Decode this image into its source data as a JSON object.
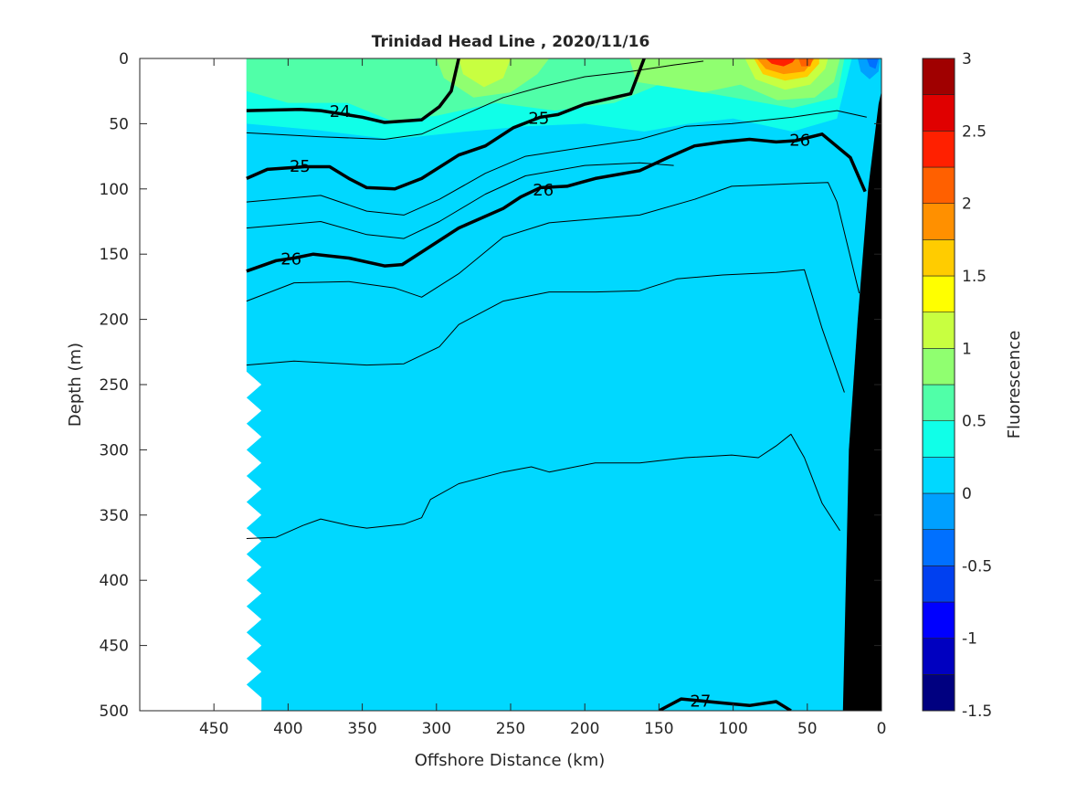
{
  "chart_data": {
    "type": "heatmap",
    "subtype": "filled contour section with density contour overlay",
    "title": "Trinidad Head Line , 2020/11/16",
    "xlabel": "Offshore Distance (km)",
    "ylabel": "Depth (m)",
    "xlim": [
      500,
      0
    ],
    "ylim": [
      0,
      500
    ],
    "x_reversed": true,
    "y_reversed": true,
    "xticks": [
      "450",
      "400",
      "350",
      "300",
      "250",
      "200",
      "150",
      "100",
      "50",
      "0"
    ],
    "yticks": [
      "0",
      "50",
      "100",
      "150",
      "200",
      "250",
      "300",
      "350",
      "400",
      "450",
      "500"
    ],
    "colorbar": {
      "label": "Fluorescence",
      "range": [
        -1.5,
        3
      ],
      "ticks": [
        "3",
        "2.5",
        "2",
        "1.5",
        "1",
        "0.5",
        "0",
        "-0.5",
        "-1",
        "-1.5"
      ],
      "levels": [
        -1.5,
        -1.25,
        -1,
        -0.75,
        -0.5,
        -0.25,
        0,
        0.25,
        0.5,
        0.75,
        1,
        1.25,
        1.5,
        1.75,
        2,
        2.25,
        2.5,
        2.75,
        3
      ],
      "colors": [
        "#000080",
        "#0000c0",
        "#0000ff",
        "#0040f0",
        "#0070ff",
        "#00a0ff",
        "#00d8ff",
        "#10ffe8",
        "#50ffa8",
        "#90ff70",
        "#c8ff40",
        "#ffff00",
        "#ffcc00",
        "#ff9000",
        "#ff6000",
        "#ff2000",
        "#e00000",
        "#a00000"
      ]
    },
    "background_level_color": "#00d8ff",
    "fluorescence_regions": [
      {
        "level": 0.25,
        "color": "#10ffe8",
        "points": [
          [
            428,
            0
          ],
          [
            428,
            50
          ],
          [
            380,
            55
          ],
          [
            330,
            62
          ],
          [
            280,
            56
          ],
          [
            240,
            52
          ],
          [
            200,
            50
          ],
          [
            160,
            56
          ],
          [
            130,
            50
          ],
          [
            100,
            46
          ],
          [
            60,
            56
          ],
          [
            30,
            46
          ],
          [
            20,
            0
          ]
        ]
      },
      {
        "level": 0.5,
        "color": "#50ffa8",
        "points": [
          [
            428,
            0
          ],
          [
            428,
            25
          ],
          [
            400,
            34
          ],
          [
            360,
            34
          ],
          [
            330,
            48
          ],
          [
            300,
            44
          ],
          [
            260,
            34
          ],
          [
            220,
            40
          ],
          [
            180,
            34
          ],
          [
            150,
            20
          ],
          [
            100,
            30
          ],
          [
            60,
            38
          ],
          [
            30,
            30
          ],
          [
            25,
            0
          ]
        ]
      },
      {
        "level": 0.75,
        "color": "#90ff70",
        "points": [
          [
            300,
            0
          ],
          [
            295,
            15
          ],
          [
            275,
            30
          ],
          [
            250,
            26
          ],
          [
            232,
            12
          ],
          [
            224,
            0
          ]
        ]
      },
      {
        "level": 0.75,
        "color": "#90ff70",
        "points": [
          [
            170,
            0
          ],
          [
            165,
            18
          ],
          [
            120,
            26
          ],
          [
            95,
            20
          ],
          [
            85,
            0
          ]
        ]
      },
      {
        "level": 0.75,
        "color": "#90ff70",
        "points": [
          [
            100,
            0
          ],
          [
            95,
            20
          ],
          [
            70,
            32
          ],
          [
            45,
            30
          ],
          [
            32,
            18
          ],
          [
            28,
            0
          ]
        ]
      },
      {
        "level": 1.0,
        "color": "#c8ff40",
        "points": [
          [
            285,
            0
          ],
          [
            282,
            12
          ],
          [
            268,
            22
          ],
          [
            255,
            15
          ],
          [
            250,
            0
          ]
        ]
      },
      {
        "level": 1.0,
        "color": "#c8ff40",
        "points": [
          [
            92,
            0
          ],
          [
            85,
            16
          ],
          [
            65,
            24
          ],
          [
            48,
            20
          ],
          [
            38,
            8
          ],
          [
            36,
            0
          ]
        ]
      },
      {
        "level": 1.5,
        "color": "#ffcc00",
        "points": [
          [
            86,
            0
          ],
          [
            80,
            12
          ],
          [
            65,
            17
          ],
          [
            50,
            14
          ],
          [
            42,
            4
          ],
          [
            42,
            0
          ]
        ]
      },
      {
        "level": 1.75,
        "color": "#ff9000",
        "points": [
          [
            84,
            0
          ],
          [
            78,
            8
          ],
          [
            66,
            12
          ],
          [
            52,
            10
          ],
          [
            45,
            0
          ]
        ]
      },
      {
        "level": 2.25,
        "color": "#ff2000",
        "points": [
          [
            78,
            0
          ],
          [
            74,
            4
          ],
          [
            66,
            6
          ],
          [
            60,
            3
          ],
          [
            58,
            0
          ]
        ]
      },
      {
        "level": 2.0,
        "color": "#ff6000",
        "points": [
          [
            56,
            0
          ],
          [
            54,
            6
          ],
          [
            48,
            6
          ],
          [
            46,
            0
          ]
        ]
      },
      {
        "level": 0,
        "color": "#00a0ff",
        "points": [
          [
            16,
            0
          ],
          [
            14,
            10
          ],
          [
            8,
            16
          ],
          [
            2,
            10
          ],
          [
            1,
            0
          ]
        ]
      },
      {
        "level": -0.25,
        "color": "#0070ff",
        "points": [
          [
            10,
            0
          ],
          [
            8,
            6
          ],
          [
            4,
            8
          ],
          [
            2,
            0
          ]
        ]
      }
    ],
    "density_contours": [
      {
        "level": 24,
        "bold": true,
        "label": "24",
        "label_at": [
          365,
          40
        ],
        "points": [
          [
            428,
            40
          ],
          [
            392,
            39
          ],
          [
            378,
            40
          ],
          [
            350,
            45
          ],
          [
            335,
            49
          ],
          [
            310,
            47
          ],
          [
            298,
            37
          ],
          [
            290,
            25
          ],
          [
            285,
            0
          ]
        ]
      },
      {
        "level": 25,
        "bold": true,
        "label": "25",
        "label_at": [
          231,
          45
        ],
        "points": [
          [
            428,
            92
          ],
          [
            414,
            85
          ],
          [
            389,
            83
          ],
          [
            372,
            83
          ],
          [
            359,
            92
          ],
          [
            347,
            99
          ],
          [
            328,
            100
          ],
          [
            310,
            92
          ],
          [
            285,
            74
          ],
          [
            267,
            67
          ],
          [
            248,
            53
          ],
          [
            230,
            45
          ],
          [
            218,
            43
          ],
          [
            200,
            35
          ],
          [
            169,
            27
          ],
          [
            160,
            0
          ]
        ]
      },
      {
        "level": 25,
        "bold": true,
        "label": "25",
        "label_at": [
          392,
          82
        ],
        "points": []
      },
      {
        "level": 26,
        "bold": true,
        "label": "26",
        "label_at": [
          398,
          153
        ],
        "points": [
          [
            428,
            163
          ],
          [
            408,
            155
          ],
          [
            396,
            153
          ],
          [
            383,
            150
          ],
          [
            359,
            153
          ],
          [
            335,
            159
          ],
          [
            323,
            158
          ],
          [
            304,
            144
          ],
          [
            285,
            130
          ],
          [
            255,
            115
          ],
          [
            243,
            106
          ],
          [
            230,
            99
          ],
          [
            212,
            98
          ],
          [
            193,
            92
          ],
          [
            163,
            86
          ],
          [
            144,
            76
          ],
          [
            126,
            67
          ],
          [
            107,
            64
          ],
          [
            89,
            62
          ],
          [
            71,
            64
          ],
          [
            58,
            63
          ],
          [
            40,
            58
          ],
          [
            21,
            76
          ],
          [
            11,
            102
          ]
        ]
      },
      {
        "level": 26,
        "bold": true,
        "label": "26",
        "label_at": [
          228,
          100
        ],
        "points": []
      },
      {
        "level": 26,
        "bold": true,
        "label": "26",
        "label_at": [
          55,
          62
        ],
        "points": []
      },
      {
        "level": 27,
        "bold": true,
        "label": "27",
        "label_at": [
          122,
          492
        ],
        "points": [
          [
            150,
            500
          ],
          [
            135,
            491
          ],
          [
            108,
            494
          ],
          [
            89,
            496
          ],
          [
            71,
            493
          ],
          [
            61,
            500
          ]
        ]
      },
      {
        "level": 24.5,
        "bold": false,
        "points": [
          [
            428,
            57
          ],
          [
            378,
            60
          ],
          [
            335,
            62
          ],
          [
            310,
            58
          ],
          [
            285,
            45
          ],
          [
            255,
            30
          ],
          [
            230,
            22
          ],
          [
            200,
            14
          ],
          [
            169,
            10
          ],
          [
            140,
            5
          ],
          [
            120,
            2
          ]
        ]
      },
      {
        "level": 25.3,
        "bold": false,
        "points": [
          [
            428,
            110
          ],
          [
            378,
            105
          ],
          [
            347,
            117
          ],
          [
            322,
            120
          ],
          [
            298,
            108
          ],
          [
            267,
            88
          ],
          [
            240,
            75
          ],
          [
            200,
            68
          ],
          [
            163,
            62
          ],
          [
            132,
            52
          ],
          [
            101,
            50
          ],
          [
            60,
            45
          ],
          [
            30,
            40
          ],
          [
            10,
            45
          ]
        ]
      },
      {
        "level": 25.6,
        "bold": false,
        "points": [
          [
            428,
            130
          ],
          [
            378,
            125
          ],
          [
            347,
            135
          ],
          [
            322,
            138
          ],
          [
            298,
            125
          ],
          [
            267,
            104
          ],
          [
            240,
            90
          ],
          [
            200,
            82
          ],
          [
            163,
            80
          ],
          [
            140,
            82
          ]
        ]
      },
      {
        "level": 26.2,
        "bold": false,
        "points": [
          [
            428,
            186
          ],
          [
            396,
            172
          ],
          [
            359,
            171
          ],
          [
            328,
            176
          ],
          [
            310,
            183
          ],
          [
            285,
            165
          ],
          [
            255,
            137
          ],
          [
            224,
            126
          ],
          [
            163,
            120
          ],
          [
            126,
            108
          ],
          [
            101,
            98
          ],
          [
            60,
            96
          ],
          [
            36,
            95
          ],
          [
            30,
            110
          ],
          [
            15,
            180
          ]
        ]
      },
      {
        "level": 26.4,
        "bold": false,
        "points": [
          [
            428,
            235
          ],
          [
            396,
            232
          ],
          [
            347,
            235
          ],
          [
            322,
            234
          ],
          [
            298,
            221
          ],
          [
            285,
            204
          ],
          [
            255,
            186
          ],
          [
            224,
            179
          ],
          [
            193,
            179
          ],
          [
            163,
            178
          ],
          [
            138,
            169
          ],
          [
            107,
            166
          ],
          [
            71,
            164
          ],
          [
            52,
            162
          ],
          [
            40,
            207
          ],
          [
            25,
            256
          ]
        ]
      },
      {
        "level": 26.6,
        "bold": false,
        "points": [
          [
            428,
            368
          ],
          [
            408,
            367
          ],
          [
            390,
            358
          ],
          [
            378,
            353
          ],
          [
            359,
            358
          ],
          [
            347,
            360
          ],
          [
            322,
            357
          ],
          [
            310,
            352
          ],
          [
            304,
            338
          ],
          [
            285,
            326
          ],
          [
            255,
            317
          ],
          [
            236,
            313
          ],
          [
            224,
            317
          ],
          [
            193,
            310
          ],
          [
            163,
            310
          ],
          [
            132,
            306
          ],
          [
            101,
            304
          ],
          [
            83,
            306
          ],
          [
            71,
            297
          ],
          [
            61,
            288
          ],
          [
            52,
            306
          ],
          [
            40,
            341
          ],
          [
            28,
            362
          ]
        ]
      }
    ],
    "bathymetry": [
      [
        0,
        25
      ],
      [
        0,
        500
      ],
      [
        26,
        500
      ],
      [
        22,
        300
      ],
      [
        16,
        200
      ],
      [
        9,
        100
      ],
      [
        2,
        35
      ]
    ],
    "data_left_edge_km": 428
  }
}
